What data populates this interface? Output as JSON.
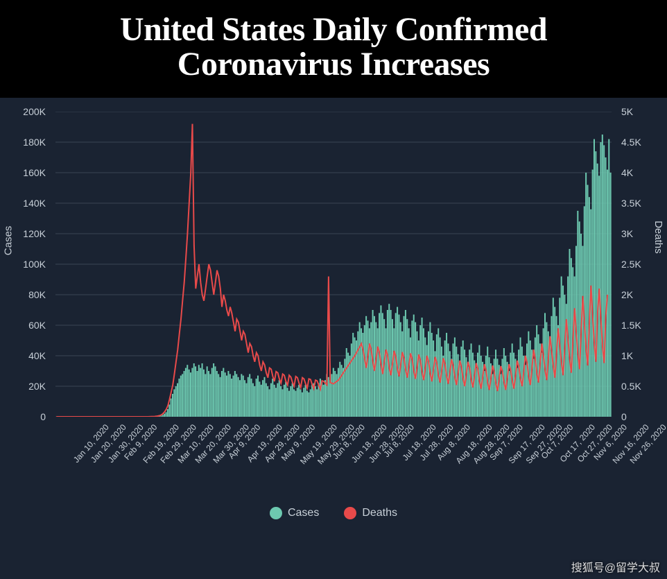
{
  "title": "United States Daily Confirmed\nCoronavirus Increases",
  "chart": {
    "type": "bar+line",
    "left_axis": {
      "title": "Cases",
      "min": 0,
      "max": 200000,
      "ticks": [
        0,
        20000,
        40000,
        60000,
        80000,
        100000,
        120000,
        140000,
        160000,
        180000,
        200000
      ],
      "tick_labels": [
        "0",
        "20K",
        "40K",
        "60K",
        "80K",
        "100K",
        "120K",
        "140K",
        "160K",
        "180K",
        "200K"
      ],
      "label_fontsize": 14,
      "title_fontsize": 15,
      "color": "#c8d0d8"
    },
    "right_axis": {
      "title": "Deaths",
      "min": 0,
      "max": 5000,
      "ticks": [
        0,
        500,
        1000,
        1500,
        2000,
        2500,
        3000,
        3500,
        4000,
        4500,
        5000
      ],
      "tick_labels": [
        "0",
        "0.5K",
        "1K",
        "1.5K",
        "2K",
        "2.5K",
        "3K",
        "3.5K",
        "4K",
        "4.5K",
        "5K"
      ],
      "label_fontsize": 14,
      "title_fontsize": 15,
      "color": "#c8d0d8"
    },
    "x_axis": {
      "labels": [
        "Jan 10, 2020",
        "Jan 20, 2020",
        "Jan 30, 2020",
        "Feb 9, 2020",
        "Feb 19, 2020",
        "Feb 29, 2020",
        "Mar 10, 2020",
        "Mar 20, 2020",
        "Mar 30, 2020",
        "Apr 9, 2020",
        "Apr 19, 2020",
        "Apr 29, 2020",
        "May 9, 2020",
        "May 19, 2020",
        "May 29, 2020",
        "Jun 8, 2020",
        "Jun 18, 2020",
        "Jun 28, 2020",
        "Jul 8, 2020",
        "Jul 18, 2020",
        "Jul 28, 2020",
        "Aug 8, 2020",
        "Aug 18, 2020",
        "Aug 28, 2020",
        "Sep 7, 2020",
        "Sep 17, 2020",
        "Sep 27, 2020",
        "Oct 7, 2020",
        "Oct 17, 2020",
        "Oct 27, 2020",
        "Nov 6, 2020",
        "Nov 16, 2020",
        "Nov 26, 2020"
      ],
      "label_fontsize": 12,
      "rotation_deg": -48,
      "color": "#c8d0d8"
    },
    "background_color": "#1a2332",
    "grid_color": "#3a4654",
    "title_bg": "#000000",
    "title_color": "#ffffff",
    "title_fontsize": 48,
    "series": {
      "cases": {
        "label": "Cases",
        "color": "#6dc9b0",
        "type": "bar",
        "values": [
          0,
          0,
          0,
          0,
          0,
          0,
          0,
          0,
          0,
          0,
          0,
          0,
          0,
          0,
          0,
          0,
          0,
          0,
          0,
          0,
          0,
          0,
          0,
          0,
          0,
          0,
          0,
          0,
          0,
          0,
          0,
          0,
          0,
          0,
          0,
          0,
          0,
          0,
          0,
          0,
          0,
          0,
          0,
          0,
          0,
          0,
          0,
          0,
          0,
          0,
          0,
          0,
          0,
          0,
          0,
          0,
          0,
          0,
          0,
          0,
          100,
          150,
          250,
          400,
          700,
          1200,
          2000,
          3000,
          5000,
          8000,
          12000,
          15000,
          18000,
          20000,
          22000,
          25000,
          27000,
          28000,
          30000,
          32000,
          34000,
          31000,
          29000,
          32000,
          35000,
          33000,
          30000,
          34000,
          32000,
          35000,
          31000,
          28000,
          33000,
          30000,
          28000,
          32000,
          35000,
          33000,
          30000,
          28000,
          26000,
          30000,
          32000,
          29000,
          27000,
          30000,
          28000,
          25000,
          27000,
          30000,
          28000,
          26000,
          24000,
          28000,
          27000,
          24000,
          22000,
          26000,
          28000,
          25000,
          22000,
          20000,
          25000,
          27000,
          23000,
          21000,
          24000,
          26000,
          22000,
          20000,
          18000,
          22000,
          25000,
          21000,
          19000,
          22000,
          24000,
          20000,
          18000,
          21000,
          23000,
          19000,
          17000,
          20000,
          22000,
          18000,
          17000,
          19000,
          21000,
          18000,
          16000,
          19000,
          21000,
          17000,
          16000,
          18000,
          21000,
          22000,
          20000,
          18000,
          22000,
          25000,
          23000,
          21000,
          24000,
          28000,
          26000,
          24000,
          28000,
          32000,
          30000,
          28000,
          32000,
          36000,
          34000,
          32000,
          38000,
          45000,
          42000,
          40000,
          48000,
          55000,
          52000,
          50000,
          56000,
          62000,
          58000,
          55000,
          60000,
          66000,
          63000,
          58000,
          62000,
          70000,
          66000,
          62000,
          58000,
          68000,
          73000,
          68000,
          64000,
          58000,
          70000,
          74000,
          70000,
          64000,
          58000,
          68000,
          72000,
          67000,
          62000,
          56000,
          66000,
          70000,
          64000,
          58000,
          52000,
          63000,
          67000,
          62000,
          56000,
          50000,
          60000,
          65000,
          58000,
          52000,
          47000,
          56000,
          62000,
          55000,
          50000,
          43000,
          54000,
          58000,
          52000,
          46000,
          40000,
          50000,
          55000,
          48000,
          43000,
          38000,
          48000,
          52000,
          46000,
          41000,
          36000,
          46000,
          50000,
          44000,
          39000,
          33000,
          44000,
          48000,
          42000,
          37000,
          32000,
          42000,
          47000,
          40000,
          36000,
          30000,
          40000,
          46000,
          39000,
          35000,
          28000,
          38000,
          44000,
          38000,
          34000,
          28000,
          38000,
          45000,
          40000,
          36000,
          30000,
          42000,
          48000,
          42000,
          38000,
          32000,
          44000,
          52000,
          46000,
          40000,
          34000,
          48000,
          56000,
          50000,
          44000,
          38000,
          52000,
          60000,
          54000,
          48000,
          42000,
          58000,
          68000,
          62000,
          56000,
          50000,
          66000,
          78000,
          72000,
          66000,
          60000,
          78000,
          92000,
          86000,
          80000,
          74000,
          92000,
          110000,
          104000,
          98000,
          92000,
          112000,
          135000,
          128000,
          120000,
          112000,
          138000,
          160000,
          152000,
          144000,
          136000,
          162000,
          182000,
          174000,
          166000,
          158000,
          180000,
          185000,
          178000,
          170000,
          162000,
          182000,
          160000
        ]
      },
      "deaths": {
        "label": "Deaths",
        "color": "#e84a4a",
        "type": "line",
        "stroke_width": 2,
        "values": [
          0,
          0,
          0,
          0,
          0,
          0,
          0,
          0,
          0,
          0,
          0,
          0,
          0,
          0,
          0,
          0,
          0,
          0,
          0,
          0,
          0,
          0,
          0,
          0,
          0,
          0,
          0,
          0,
          0,
          0,
          0,
          0,
          0,
          0,
          0,
          0,
          0,
          0,
          0,
          0,
          0,
          0,
          0,
          0,
          0,
          0,
          0,
          0,
          0,
          0,
          0,
          0,
          0,
          0,
          0,
          0,
          0,
          1,
          2,
          3,
          5,
          8,
          12,
          18,
          30,
          50,
          80,
          120,
          180,
          280,
          400,
          520,
          700,
          900,
          1100,
          1350,
          1600,
          1900,
          2200,
          2600,
          3000,
          3500,
          4000,
          4800,
          2800,
          2100,
          2300,
          2500,
          2200,
          2000,
          1900,
          2100,
          2300,
          2500,
          2400,
          2200,
          2000,
          2200,
          2400,
          2300,
          2100,
          1800,
          2000,
          1900,
          1750,
          1650,
          1800,
          1700,
          1550,
          1400,
          1600,
          1550,
          1400,
          1250,
          1400,
          1350,
          1200,
          1050,
          1200,
          1150,
          1000,
          900,
          1050,
          1000,
          850,
          750,
          900,
          850,
          720,
          640,
          800,
          780,
          660,
          580,
          740,
          720,
          620,
          550,
          700,
          680,
          580,
          520,
          680,
          650,
          560,
          500,
          660,
          640,
          550,
          480,
          640,
          620,
          540,
          470,
          620,
          610,
          530,
          460,
          600,
          590,
          520,
          450,
          590,
          580,
          550,
          520,
          2300,
          560,
          550,
          540,
          560,
          580,
          600,
          640,
          680,
          720,
          760,
          800,
          840,
          880,
          920,
          960,
          1000,
          1050,
          1100,
          1150,
          1200,
          1100,
          950,
          800,
          1000,
          1200,
          1100,
          900,
          750,
          950,
          1150,
          1050,
          850,
          700,
          900,
          1100,
          1000,
          800,
          680,
          880,
          1080,
          980,
          780,
          660,
          860,
          1060,
          960,
          760,
          640,
          840,
          1040,
          940,
          740,
          620,
          820,
          1020,
          920,
          720,
          600,
          800,
          1000,
          900,
          700,
          580,
          780,
          980,
          880,
          680,
          560,
          760,
          960,
          860,
          660,
          540,
          740,
          940,
          840,
          640,
          520,
          720,
          920,
          820,
          620,
          500,
          700,
          900,
          800,
          600,
          480,
          680,
          880,
          780,
          580,
          460,
          660,
          860,
          760,
          560,
          440,
          640,
          840,
          740,
          540,
          420,
          620,
          830,
          740,
          560,
          440,
          640,
          860,
          770,
          580,
          460,
          680,
          920,
          820,
          620,
          500,
          740,
          1000,
          880,
          660,
          520,
          800,
          1100,
          940,
          700,
          560,
          880,
          1200,
          1000,
          760,
          600,
          960,
          1320,
          1080,
          820,
          640,
          1040,
          1450,
          1160,
          880,
          680,
          1140,
          1600,
          1260,
          940,
          720,
          1260,
          1780,
          1380,
          1020,
          780,
          1400,
          1980,
          1520,
          1100,
          840,
          1560,
          2150,
          1640,
          1180,
          900,
          1700,
          2100,
          1600,
          1150,
          880,
          1650,
          2000
        ]
      }
    },
    "legend": {
      "items": [
        {
          "label": "Cases",
          "color": "#6dc9b0"
        },
        {
          "label": "Deaths",
          "color": "#e84a4a"
        }
      ],
      "fontsize": 16,
      "color": "#c8d0d8"
    }
  },
  "watermark": "搜狐号@留学大叔"
}
